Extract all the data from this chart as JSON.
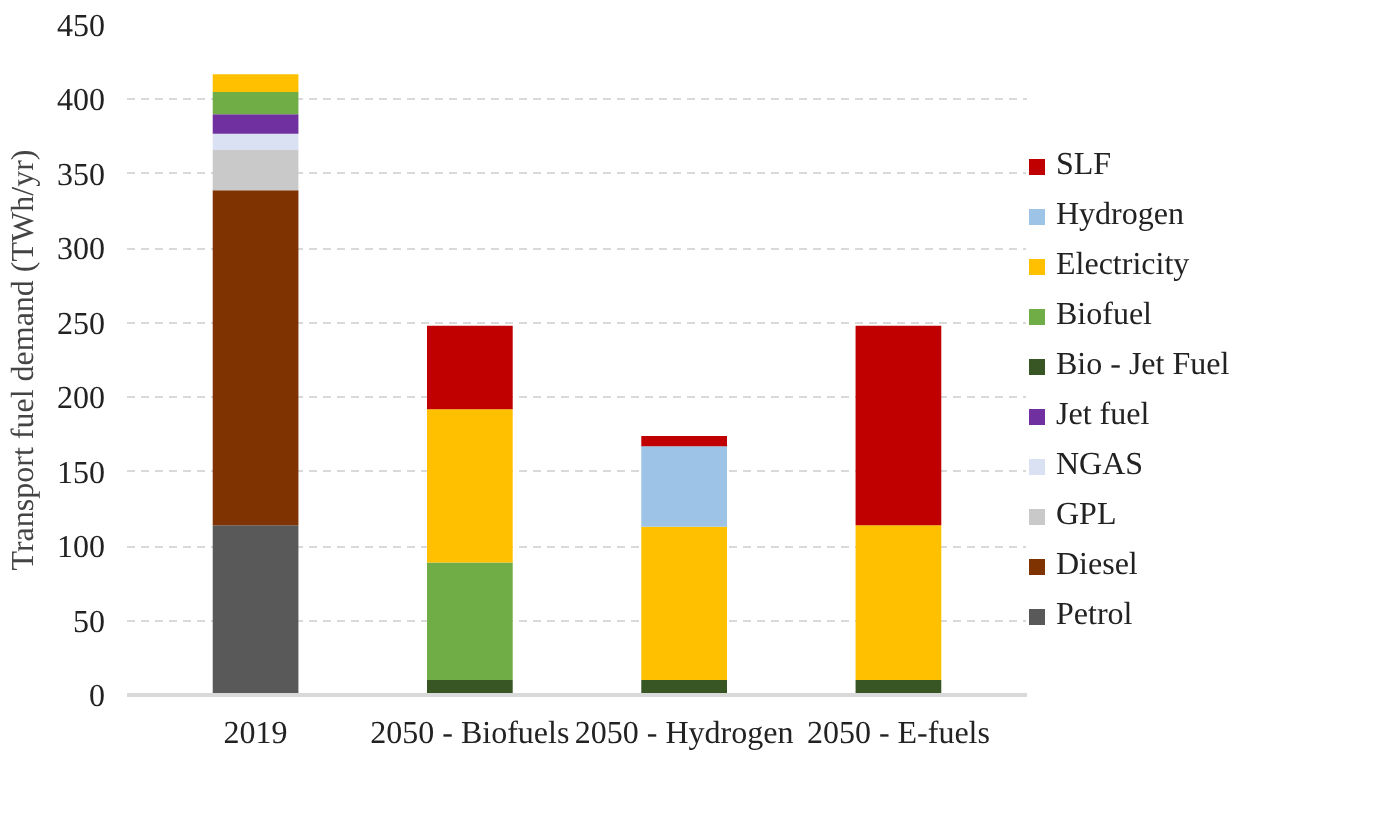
{
  "chart_data": {
    "type": "bar",
    "stacked": true,
    "ylabel": "Transport fuel demand (TWh/yr)",
    "categories": [
      "2019",
      "2050 - Biofuels",
      "2050 - Hydrogen",
      "2050 - E-fuels"
    ],
    "ylim": [
      0,
      450
    ],
    "yticks": [
      0,
      50,
      100,
      150,
      200,
      250,
      300,
      350,
      400,
      450
    ],
    "grid": "y",
    "legend": "right",
    "series": [
      {
        "name": "Petrol",
        "color": "#595959",
        "values": [
          114,
          null,
          null,
          null
        ]
      },
      {
        "name": "Diesel",
        "color": "#7f3300",
        "values": [
          225,
          null,
          null,
          null
        ]
      },
      {
        "name": "GPL",
        "color": "#c9c9c9",
        "values": [
          27,
          null,
          null,
          null
        ]
      },
      {
        "name": "NGAS",
        "color": "#d9e1f2",
        "values": [
          11,
          null,
          null,
          null
        ]
      },
      {
        "name": "Jet fuel",
        "color": "#7030a0",
        "values": [
          13,
          null,
          null,
          null
        ]
      },
      {
        "name": "Bio - Jet Fuel",
        "color": "#375623",
        "values": [
          null,
          10,
          10,
          10
        ]
      },
      {
        "name": "Biofuel",
        "color": "#70ad47",
        "values": [
          15,
          79,
          null,
          null
        ]
      },
      {
        "name": "Electricity",
        "color": "#ffc000",
        "values": [
          12,
          103,
          103,
          104
        ]
      },
      {
        "name": "Hydrogen",
        "color": "#9dc3e6",
        "values": [
          null,
          null,
          54,
          null
        ]
      },
      {
        "name": "SLF",
        "color": "#c00000",
        "values": [
          null,
          56,
          7,
          134
        ]
      }
    ]
  }
}
